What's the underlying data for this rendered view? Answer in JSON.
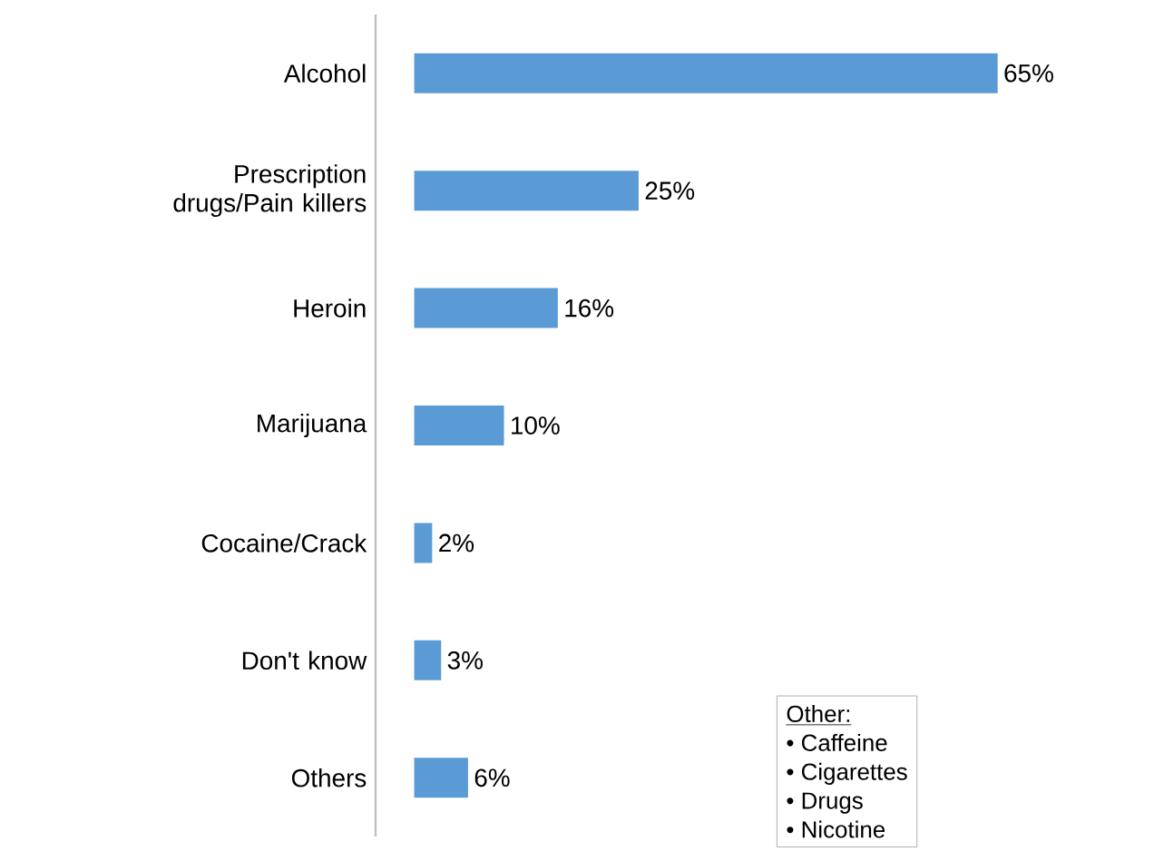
{
  "chart_data": {
    "type": "bar",
    "orientation": "horizontal",
    "categories": [
      "Alcohol",
      "Prescription drugs/Pain killers",
      "Heroin",
      "Marijuana",
      "Cocaine/Crack",
      "Don't know",
      "Others"
    ],
    "values": [
      65,
      25,
      16,
      10,
      2,
      3,
      6
    ],
    "value_labels": [
      "65%",
      "25%",
      "16%",
      "10%",
      "2%",
      "3%",
      "6%"
    ],
    "color": "#5b9bd5",
    "tick_labels": "y",
    "annotations": [
      "Other:",
      "•  Caffeine",
      "•  Cigarettes",
      "•  Drugs",
      "•  Nicotine"
    ]
  }
}
